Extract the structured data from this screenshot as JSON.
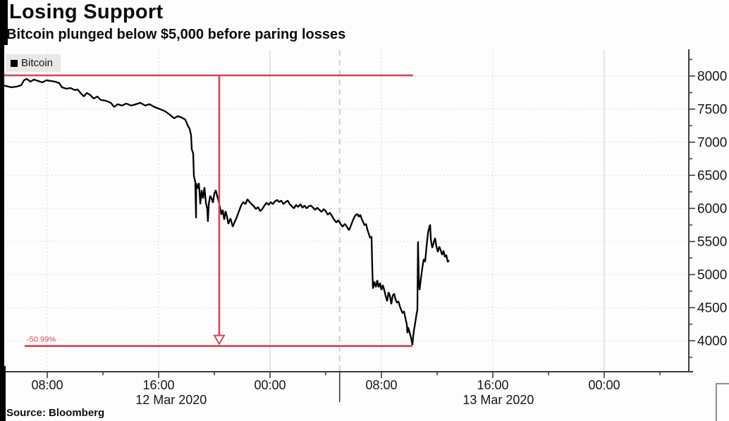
{
  "header": {
    "title": "Losing Support",
    "subtitle": "Bitcoin plunged below $5,000 before paring losses"
  },
  "legend": {
    "background": "#e9e8e6",
    "items": [
      {
        "label": "Bitcoin",
        "swatch_color": "#000000"
      }
    ]
  },
  "source": {
    "text": "Source: Bloomberg"
  },
  "colors": {
    "price_line": "#000000",
    "annotation_red": "#d04a5d",
    "grid_dotted": "#e1dddc",
    "grid_solid": "#d9d7d6",
    "axis": "#3d3d3d"
  },
  "chart_data": {
    "type": "line",
    "title": "Losing Support",
    "subtitle": "Bitcoin plunged below $5,000 before paring losses",
    "x_unit": "hours since 12 Mar 2020 00:00",
    "xlabel": "",
    "ylabel": "",
    "x_axis": {
      "t_range": [
        4.61,
        54.08
      ],
      "major_ticks": [
        {
          "t": 8,
          "label": "08:00"
        },
        {
          "t": 16,
          "label": "16:00"
        },
        {
          "t": 24,
          "label": "00:00"
        },
        {
          "t": 32,
          "label": "08:00"
        },
        {
          "t": 40,
          "label": "16:00"
        },
        {
          "t": 48,
          "label": "00:00"
        }
      ],
      "minor_ticks": [
        12,
        20,
        28,
        36,
        44,
        52
      ],
      "day_labels": [
        {
          "t": 16.9,
          "label": "12 Mar 2020"
        },
        {
          "t": 40.4,
          "label": "13 Mar 2020"
        }
      ],
      "day_separator_t": 29.0,
      "solid_grid_t": [
        24,
        48
      ],
      "dotted_grid_t": [
        8,
        16,
        32,
        40
      ]
    },
    "y_axis": {
      "side": "right",
      "range": [
        3530,
        8395
      ],
      "major_ticks": [
        8000,
        7500,
        7000,
        6500,
        6000,
        5500,
        5000,
        4500,
        4000
      ],
      "minor_ticks": [
        8250,
        7750,
        7250,
        6750,
        6250,
        5750,
        5250,
        4750,
        4250,
        3750
      ],
      "grid_lines": [
        8000,
        7500,
        7000,
        6500,
        6000,
        5500,
        5000,
        4500,
        4000
      ]
    },
    "annotations": {
      "high_line": {
        "price": 8010,
        "t_start": 4.61,
        "t_end": 34.28
      },
      "drop_arrow": {
        "t": 20.35,
        "from_price": 8010,
        "to_price": 3960
      },
      "low_line": {
        "price": 3920,
        "t_start": 6.38,
        "t_end": 34.23,
        "label": "-50.99%"
      },
      "decline_pct": "-50.99%"
    },
    "series": [
      {
        "name": "Bitcoin",
        "color": "#000000",
        "points": [
          [
            4.61,
            7872
          ],
          [
            5.01,
            7851
          ],
          [
            5.42,
            7830
          ],
          [
            5.82,
            7840
          ],
          [
            6.13,
            7862
          ],
          [
            6.33,
            7936
          ],
          [
            6.53,
            7957
          ],
          [
            6.79,
            7915
          ],
          [
            7.04,
            7947
          ],
          [
            7.34,
            7926
          ],
          [
            7.65,
            7904
          ],
          [
            7.95,
            7936
          ],
          [
            8.25,
            7926
          ],
          [
            8.56,
            7915
          ],
          [
            8.86,
            7894
          ],
          [
            9.06,
            7830
          ],
          [
            9.37,
            7809
          ],
          [
            9.67,
            7819
          ],
          [
            9.98,
            7787
          ],
          [
            10.18,
            7798
          ],
          [
            10.43,
            7734
          ],
          [
            10.63,
            7692
          ],
          [
            10.84,
            7745
          ],
          [
            11.09,
            7713
          ],
          [
            11.34,
            7660
          ],
          [
            11.6,
            7692
          ],
          [
            11.85,
            7638
          ],
          [
            12.2,
            7628
          ],
          [
            12.56,
            7596
          ],
          [
            12.81,
            7532
          ],
          [
            13.06,
            7574
          ],
          [
            13.37,
            7553
          ],
          [
            13.67,
            7585
          ],
          [
            14.03,
            7553
          ],
          [
            14.38,
            7574
          ],
          [
            14.68,
            7596
          ],
          [
            15.04,
            7553
          ],
          [
            15.34,
            7574
          ],
          [
            15.7,
            7532
          ],
          [
            16.1,
            7500
          ],
          [
            16.46,
            7468
          ],
          [
            16.81,
            7415
          ],
          [
            17.11,
            7362
          ],
          [
            17.37,
            7394
          ],
          [
            17.67,
            7372
          ],
          [
            17.92,
            7340
          ],
          [
            18.08,
            7255
          ],
          [
            18.23,
            7202
          ],
          [
            18.33,
            7106
          ],
          [
            18.38,
            6894
          ],
          [
            18.48,
            6830
          ],
          [
            18.53,
            6489
          ],
          [
            18.63,
            6404
          ],
          [
            18.69,
            5851
          ],
          [
            18.7,
            6383
          ],
          [
            18.79,
            6298
          ],
          [
            18.89,
            6383
          ],
          [
            18.99,
            6064
          ],
          [
            19.09,
            6277
          ],
          [
            19.19,
            6149
          ],
          [
            19.29,
            6319
          ],
          [
            19.39,
            6085
          ],
          [
            19.49,
            6000
          ],
          [
            19.54,
            5798
          ],
          [
            19.6,
            6064
          ],
          [
            19.7,
            6191
          ],
          [
            19.8,
            6149
          ],
          [
            19.9,
            6085
          ],
          [
            20.0,
            6223
          ],
          [
            20.1,
            6277
          ],
          [
            20.2,
            6191
          ],
          [
            20.3,
            6117
          ],
          [
            20.41,
            6011
          ],
          [
            20.51,
            5904
          ],
          [
            20.61,
            5979
          ],
          [
            20.71,
            5830
          ],
          [
            20.81,
            5957
          ],
          [
            20.91,
            5872
          ],
          [
            21.01,
            5766
          ],
          [
            21.16,
            5851
          ],
          [
            21.32,
            5723
          ],
          [
            21.47,
            5798
          ],
          [
            21.62,
            5872
          ],
          [
            21.77,
            5957
          ],
          [
            21.92,
            6043
          ],
          [
            22.08,
            6096
          ],
          [
            22.23,
            6064
          ],
          [
            22.38,
            6138
          ],
          [
            22.53,
            6096
          ],
          [
            22.68,
            6064
          ],
          [
            22.84,
            6032
          ],
          [
            22.99,
            5989
          ],
          [
            23.14,
            6021
          ],
          [
            23.29,
            5957
          ],
          [
            23.44,
            5989
          ],
          [
            23.6,
            6043
          ],
          [
            23.75,
            6085
          ],
          [
            23.9,
            6053
          ],
          [
            24.05,
            6096
          ],
          [
            24.2,
            6064
          ],
          [
            24.35,
            6106
          ],
          [
            24.51,
            6128
          ],
          [
            24.66,
            6096
          ],
          [
            24.81,
            6117
          ],
          [
            24.96,
            6064
          ],
          [
            25.11,
            6096
          ],
          [
            25.27,
            6117
          ],
          [
            25.42,
            6064
          ],
          [
            25.57,
            6032
          ],
          [
            25.72,
            6000
          ],
          [
            25.87,
            6053
          ],
          [
            26.02,
            6021
          ],
          [
            26.18,
            6064
          ],
          [
            26.33,
            6011
          ],
          [
            26.48,
            6043
          ],
          [
            26.63,
            6000
          ],
          [
            26.78,
            6032
          ],
          [
            26.94,
            6043
          ],
          [
            27.09,
            6011
          ],
          [
            27.24,
            5979
          ],
          [
            27.39,
            6011
          ],
          [
            27.54,
            5979
          ],
          [
            27.7,
            5947
          ],
          [
            27.85,
            5989
          ],
          [
            28.0,
            5957
          ],
          [
            28.15,
            5904
          ],
          [
            28.3,
            5936
          ],
          [
            28.45,
            5883
          ],
          [
            28.61,
            5830
          ],
          [
            28.76,
            5787
          ],
          [
            28.91,
            5819
          ],
          [
            29.06,
            5766
          ],
          [
            29.21,
            5723
          ],
          [
            29.37,
            5766
          ],
          [
            29.52,
            5723
          ],
          [
            29.67,
            5670
          ],
          [
            29.82,
            5745
          ],
          [
            29.97,
            5830
          ],
          [
            30.12,
            5894
          ],
          [
            30.28,
            5915
          ],
          [
            30.38,
            5872
          ],
          [
            30.48,
            5904
          ],
          [
            30.58,
            5840
          ],
          [
            30.68,
            5798
          ],
          [
            30.78,
            5745
          ],
          [
            30.89,
            5766
          ],
          [
            30.99,
            5681
          ],
          [
            31.09,
            5617
          ],
          [
            31.19,
            5553
          ],
          [
            31.29,
            5574
          ],
          [
            31.34,
            5106
          ],
          [
            31.39,
            4787
          ],
          [
            31.49,
            4894
          ],
          [
            31.6,
            4809
          ],
          [
            31.7,
            4915
          ],
          [
            31.8,
            4809
          ],
          [
            31.9,
            4872
          ],
          [
            32.0,
            4766
          ],
          [
            32.1,
            4840
          ],
          [
            32.2,
            4766
          ],
          [
            32.3,
            4681
          ],
          [
            32.41,
            4596
          ],
          [
            32.51,
            4734
          ],
          [
            32.61,
            4681
          ],
          [
            32.71,
            4553
          ],
          [
            32.81,
            4681
          ],
          [
            32.91,
            4713
          ],
          [
            33.01,
            4628
          ],
          [
            33.11,
            4574
          ],
          [
            33.22,
            4596
          ],
          [
            33.32,
            4521
          ],
          [
            33.42,
            4468
          ],
          [
            33.52,
            4415
          ],
          [
            33.62,
            4447
          ],
          [
            33.72,
            4340
          ],
          [
            33.82,
            4255
          ],
          [
            33.87,
            4117
          ],
          [
            33.92,
            4202
          ],
          [
            34.02,
            4128
          ],
          [
            34.13,
            4043
          ],
          [
            34.23,
            3936
          ],
          [
            34.28,
            4064
          ],
          [
            34.33,
            4149
          ],
          [
            34.43,
            4277
          ],
          [
            34.53,
            4415
          ],
          [
            34.58,
            4468
          ],
          [
            34.63,
            5500
          ],
          [
            34.69,
            4894
          ],
          [
            34.74,
            4766
          ],
          [
            34.84,
            4947
          ],
          [
            34.94,
            5106
          ],
          [
            35.04,
            5234
          ],
          [
            35.14,
            5191
          ],
          [
            35.24,
            5425
          ],
          [
            35.35,
            5638
          ],
          [
            35.45,
            5723
          ],
          [
            35.5,
            5755
          ],
          [
            35.55,
            5532
          ],
          [
            35.65,
            5404
          ],
          [
            35.75,
            5479
          ],
          [
            35.85,
            5553
          ],
          [
            35.95,
            5425
          ],
          [
            36.05,
            5340
          ],
          [
            36.15,
            5425
          ],
          [
            36.25,
            5372
          ],
          [
            36.36,
            5298
          ],
          [
            36.46,
            5362
          ],
          [
            36.56,
            5266
          ],
          [
            36.66,
            5298
          ],
          [
            36.76,
            5191
          ],
          [
            36.86,
            5213
          ]
        ]
      }
    ]
  }
}
